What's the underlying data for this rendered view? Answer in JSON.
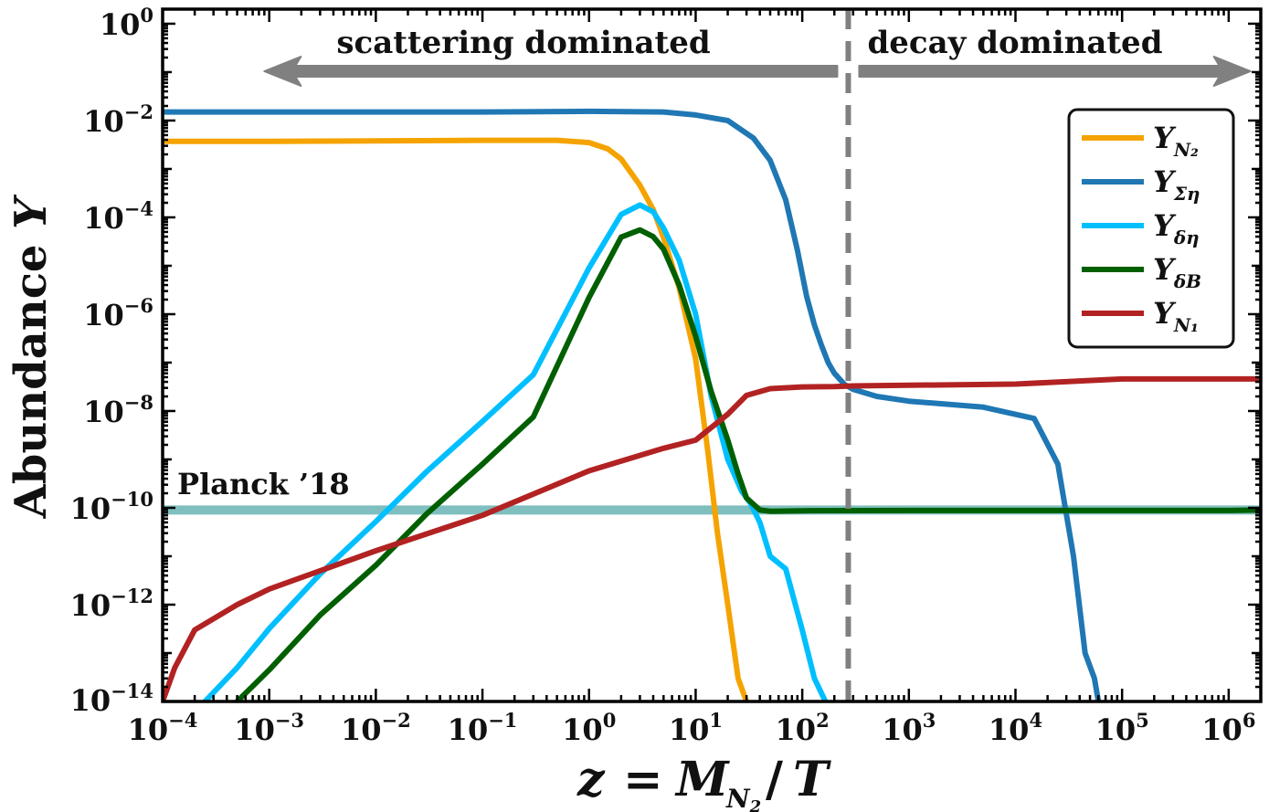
{
  "chart_data": {
    "type": "line",
    "title": "",
    "xlabel": "z = M_{N_2}/T",
    "ylabel": "Abundance Y",
    "xscale": "log",
    "yscale": "log",
    "xlim": [
      0.0001,
      2000000
    ],
    "ylim": [
      1e-14,
      2
    ],
    "x_tick_labels": [
      {
        "base": "10",
        "exp": "−4",
        "value": 0.0001
      },
      {
        "base": "10",
        "exp": "−3",
        "value": 0.001
      },
      {
        "base": "10",
        "exp": "−2",
        "value": 0.01
      },
      {
        "base": "10",
        "exp": "−1",
        "value": 0.1
      },
      {
        "base": "10",
        "exp": "0",
        "value": 1
      },
      {
        "base": "10",
        "exp": "1",
        "value": 10
      },
      {
        "base": "10",
        "exp": "2",
        "value": 100
      },
      {
        "base": "10",
        "exp": "3",
        "value": 1000
      },
      {
        "base": "10",
        "exp": "4",
        "value": 10000
      },
      {
        "base": "10",
        "exp": "5",
        "value": 100000
      },
      {
        "base": "10",
        "exp": "6",
        "value": 1000000
      }
    ],
    "y_tick_labels": [
      {
        "base": "10",
        "exp": "0",
        "value": 1
      },
      {
        "base": "10",
        "exp": "−2",
        "value": 0.01
      },
      {
        "base": "10",
        "exp": "−4",
        "value": 0.0001
      },
      {
        "base": "10",
        "exp": "−6",
        "value": 1e-06
      },
      {
        "base": "10",
        "exp": "−8",
        "value": 1e-08
      },
      {
        "base": "10",
        "exp": "−10",
        "value": 1e-10
      },
      {
        "base": "10",
        "exp": "−12",
        "value": 1e-12
      },
      {
        "base": "10",
        "exp": "−14",
        "value": 1e-14
      }
    ],
    "series": [
      {
        "name": "Y_N2",
        "label": "Y",
        "sub": "N₂",
        "color": "#f5a300",
        "x": [
          0.0001,
          0.001,
          0.01,
          0.1,
          0.5,
          1,
          1.5,
          2,
          3,
          4,
          5,
          7,
          10,
          13,
          16,
          20,
          25,
          30
        ],
        "y": [
          0.0037,
          0.0037,
          0.0038,
          0.0039,
          0.0039,
          0.0035,
          0.0026,
          0.0016,
          0.00046,
          0.000145,
          3.8e-05,
          3.5e-06,
          1.2e-07,
          1.5e-09,
          3e-11,
          1e-12,
          3e-14,
          1e-14
        ]
      },
      {
        "name": "Y_Sigma_eta",
        "label": "Y",
        "sub": "Ση",
        "color": "#1f77b4",
        "x": [
          0.0001,
          0.1,
          1,
          5,
          10,
          20,
          35,
          50,
          70,
          90,
          110,
          130,
          150,
          175,
          200,
          250,
          300,
          500,
          1000,
          5000,
          15000,
          25000,
          35000,
          45000,
          55000,
          60000
        ],
        "y": [
          0.015,
          0.015,
          0.0155,
          0.015,
          0.013,
          0.01,
          0.0043,
          0.0015,
          0.00023,
          2.1e-05,
          2.3e-06,
          6e-07,
          2.4e-07,
          1e-07,
          6e-08,
          3.5e-08,
          2.8e-08,
          2e-08,
          1.6e-08,
          1.2e-08,
          7e-09,
          8e-10,
          1e-11,
          1e-13,
          3e-14,
          1e-14
        ]
      },
      {
        "name": "Y_delta_eta",
        "label": "Y",
        "sub": "δη",
        "color": "#00bfff",
        "x": [
          0.00025,
          0.0005,
          0.001,
          0.003,
          0.01,
          0.03,
          0.1,
          0.3,
          1,
          2,
          3,
          4,
          5,
          7,
          10,
          14,
          20,
          27,
          33,
          40,
          50,
          70,
          100,
          130,
          165
        ],
        "y": [
          1e-14,
          5e-14,
          3.2e-13,
          4.3e-12,
          5.2e-11,
          5.6e-10,
          6.1e-09,
          5.6e-08,
          9e-06,
          0.000115,
          0.00018,
          0.00013,
          6e-05,
          1.3e-05,
          1e-06,
          2e-08,
          1e-09,
          2.2e-10,
          1.2e-10,
          5e-11,
          1e-11,
          5.5e-12,
          3e-13,
          3e-14,
          1e-14
        ]
      },
      {
        "name": "Y_delta_B",
        "label": "Y",
        "sub": "δB",
        "color": "#005f00",
        "x": [
          0.0005,
          0.001,
          0.003,
          0.01,
          0.03,
          0.1,
          0.3,
          1,
          2,
          3,
          4,
          5,
          7,
          10,
          14,
          20,
          25,
          30,
          40,
          50,
          100,
          1000,
          10000,
          100000,
          1000000,
          2000000
        ],
        "y": [
          1e-14,
          4.5e-14,
          6.1e-13,
          6.5e-12,
          7.5e-11,
          8e-10,
          7.5e-09,
          2.2e-06,
          3.9e-05,
          5.5e-05,
          4e-05,
          2.2e-05,
          4e-06,
          3.5e-07,
          2.5e-08,
          2.5e-09,
          5e-10,
          1.6e-10,
          9e-11,
          8.5e-11,
          8.7e-11,
          8.8e-11,
          8.8e-11,
          8.8e-11,
          8.8e-11,
          9e-11
        ]
      },
      {
        "name": "Y_N1",
        "label": "Y",
        "sub": "N₁",
        "color": "#b22222",
        "x": [
          0.0001,
          0.00013,
          0.0002,
          0.0005,
          0.001,
          0.01,
          0.1,
          1,
          5,
          10,
          20,
          30,
          50,
          100,
          200,
          300,
          1000,
          10000,
          100000,
          1000000,
          2000000
        ],
        "y": [
          1e-14,
          5e-14,
          3e-13,
          1e-12,
          2.1e-12,
          1.3e-11,
          7e-11,
          5.8e-10,
          1.7e-09,
          2.5e-09,
          8.6e-09,
          2.1e-08,
          2.9e-08,
          3.15e-08,
          3.2e-08,
          3.3e-08,
          3.4e-08,
          3.6e-08,
          4.6e-08,
          4.6e-08,
          4.6e-08
        ]
      }
    ],
    "reference_line": {
      "name": "Planck '18",
      "label": "Planck ’18",
      "y": 9e-11,
      "color": "#7fbfbf"
    },
    "vertical_line": {
      "x": 270,
      "style": "dashed",
      "color": "#808080"
    },
    "annotations": [
      {
        "text": "scattering dominated",
        "arrow_from": 270,
        "arrow_to": 0.0009
      },
      {
        "text": "decay dominated",
        "arrow_from": 270,
        "arrow_to": 1600000
      }
    ],
    "arrow_color": "#808080",
    "legend": {
      "position": "top-right",
      "entries": [
        "Y_N2",
        "Y_Sigma_eta",
        "Y_delta_eta",
        "Y_delta_B",
        "Y_N1"
      ]
    },
    "grid": false
  }
}
